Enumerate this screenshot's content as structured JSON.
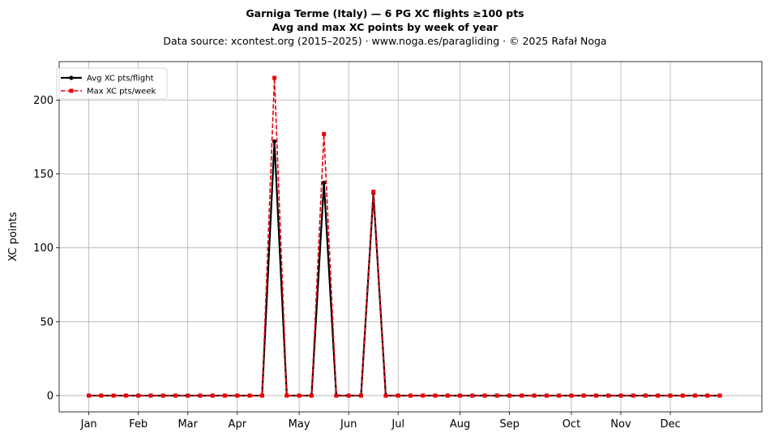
{
  "title": "Garniga Terme (Italy)  —  6 PG XC flights ≥100 pts",
  "subtitle": "Avg and max XC points by week of year",
  "source_line": "Data source: xcontest.org (2015–2025)  ·  www.noga.es/paragliding  ·  © 2025 Rafał Noga",
  "colors": {
    "avg": "#000000",
    "max": "#e8000b",
    "grid": "#b0b0b0"
  },
  "chart_data": {
    "type": "line",
    "title": "Garniga Terme (Italy)  —  6 PG XC flights ≥100 pts",
    "subtitle": "Avg and max XC points by week of year",
    "xlabel": "",
    "ylabel": "XC points",
    "x_ticks": [
      {
        "label": "Jan",
        "week": 1
      },
      {
        "label": "Feb",
        "week": 5
      },
      {
        "label": "Mar",
        "week": 9
      },
      {
        "label": "Apr",
        "week": 13
      },
      {
        "label": "May",
        "week": 18
      },
      {
        "label": "Jun",
        "week": 22
      },
      {
        "label": "Jul",
        "week": 26
      },
      {
        "label": "Aug",
        "week": 31
      },
      {
        "label": "Sep",
        "week": 35
      },
      {
        "label": "Oct",
        "week": 40
      },
      {
        "label": "Nov",
        "week": 44
      },
      {
        "label": "Dec",
        "week": 48
      }
    ],
    "xlim": [
      -1.4,
      55.4
    ],
    "ylim": [
      -11,
      226
    ],
    "y_ticks": [
      0,
      50,
      100,
      150,
      200
    ],
    "grid": true,
    "legend_position": "upper-left",
    "x": [
      1,
      2,
      3,
      4,
      5,
      6,
      7,
      8,
      9,
      10,
      11,
      12,
      13,
      14,
      15,
      16,
      17,
      18,
      19,
      20,
      21,
      22,
      23,
      24,
      25,
      26,
      27,
      28,
      29,
      30,
      31,
      32,
      33,
      34,
      35,
      36,
      37,
      38,
      39,
      40,
      41,
      42,
      43,
      44,
      45,
      46,
      47,
      48,
      49,
      50,
      51,
      52
    ],
    "series": [
      {
        "name": "Avg XC pts/flight",
        "style": "solid",
        "marker": "circle",
        "values": [
          0,
          0,
          0,
          0,
          0,
          0,
          0,
          0,
          0,
          0,
          0,
          0,
          0,
          0,
          0,
          172,
          0,
          0,
          0,
          144,
          0,
          0,
          0,
          137,
          0,
          0,
          0,
          0,
          0,
          0,
          0,
          0,
          0,
          0,
          0,
          0,
          0,
          0,
          0,
          0,
          0,
          0,
          0,
          0,
          0,
          0,
          0,
          0,
          0,
          0,
          0,
          0
        ]
      },
      {
        "name": "Max XC pts/week",
        "style": "dashed",
        "marker": "square",
        "values": [
          0,
          0,
          0,
          0,
          0,
          0,
          0,
          0,
          0,
          0,
          0,
          0,
          0,
          0,
          0,
          215,
          0,
          0,
          0,
          177,
          0,
          0,
          0,
          138,
          0,
          0,
          0,
          0,
          0,
          0,
          0,
          0,
          0,
          0,
          0,
          0,
          0,
          0,
          0,
          0,
          0,
          0,
          0,
          0,
          0,
          0,
          0,
          0,
          0,
          0,
          0,
          0
        ]
      }
    ]
  }
}
